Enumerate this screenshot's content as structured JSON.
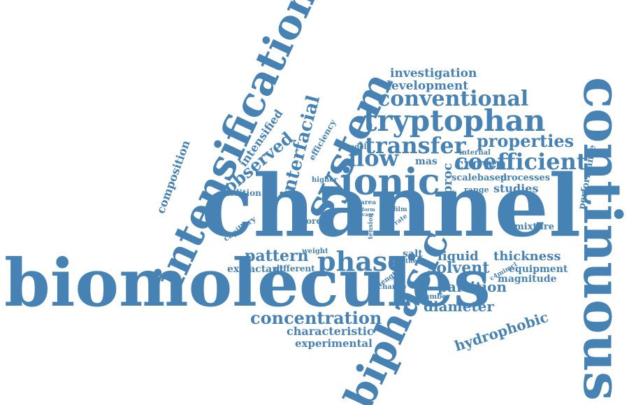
{
  "color": "#4682b4",
  "background": "#ffffff",
  "words": [
    "channel",
    "biomolecules",
    "continuous",
    "intensification",
    "system",
    "biphasic",
    "ionic",
    "tryptophan",
    "conventional",
    "interfacial",
    "transfer",
    "coefficient",
    "phase",
    "flow",
    "properties",
    "investigation",
    "development",
    "composition",
    "intensified",
    "observed",
    "efficiency",
    "concentration",
    "characteristic",
    "experimental",
    "pattern",
    "extractant",
    "different",
    "weight",
    "capillary",
    "condition",
    "higher",
    "model",
    "mas",
    "proc",
    "crown",
    "scalebased",
    "processes",
    "internal",
    "range",
    "studies",
    "performance",
    "area",
    "form",
    "case",
    "film",
    "rate",
    "order",
    "tension",
    "length",
    "salt",
    "thesis",
    "change",
    "number",
    "liquid",
    "thickness",
    "solvent",
    "c4mimcl",
    "equipment",
    "partition",
    "magnitude",
    "diameter",
    "hydrophobic",
    "mixture"
  ]
}
